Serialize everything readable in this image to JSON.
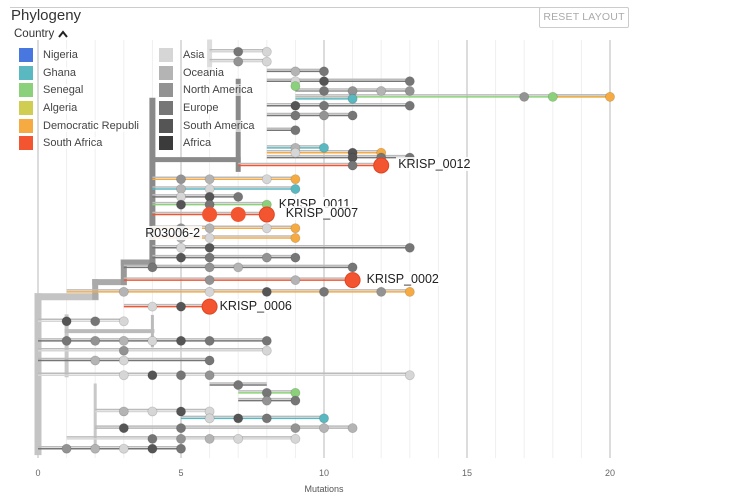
{
  "panel": {
    "title": "Phylogeny",
    "reset_button": "RESET LAYOUT"
  },
  "legend": {
    "title": "Country",
    "toggle_icon": "chevron-up-icon",
    "columns": [
      [
        {
          "label": "Nigeria",
          "color": "#4877e0"
        },
        {
          "label": "Ghana",
          "color": "#5ab8c0"
        },
        {
          "label": "Senegal",
          "color": "#8bd07a"
        },
        {
          "label": "Algeria",
          "color": "#cfcd52"
        },
        {
          "label": "Democratic Republi",
          "color": "#f5aa42"
        },
        {
          "label": "South Africa",
          "color": "#f25530"
        }
      ],
      [
        {
          "label": "Asia",
          "color": "#d6d6d6"
        },
        {
          "label": "Oceania",
          "color": "#b4b4b4"
        },
        {
          "label": "North America",
          "color": "#939393"
        },
        {
          "label": "Europe",
          "color": "#767676"
        },
        {
          "label": "South America",
          "color": "#555555"
        },
        {
          "label": "Africa",
          "color": "#3b3b3b"
        }
      ]
    ]
  },
  "chart_data": {
    "type": "tree",
    "title": "Phylogeny",
    "xlabel": "Mutations",
    "xlim": [
      0,
      20
    ],
    "xticks": [
      "0",
      "5",
      "10",
      "15",
      "20"
    ],
    "grid": true,
    "legend_position": "top-left",
    "highlighted_tips": [
      {
        "label": "KRISP_0012",
        "mutations": 12,
        "country": "South Africa"
      },
      {
        "label": "KRISP_0011",
        "mutations": 8,
        "country": "Africa"
      },
      {
        "label": "KRISP_0007",
        "mutations": 8,
        "country": "South Africa"
      },
      {
        "label": "R03006-2",
        "mutations": 7,
        "country": "South Africa"
      },
      {
        "label": "KRISP_0002",
        "mutations": 11,
        "country": "South Africa"
      },
      {
        "label": "KRISP_0006",
        "mutations": 6,
        "country": "South Africa"
      }
    ],
    "branches": [
      {
        "row": 1,
        "from": 6,
        "to": 8,
        "color": "#d6d6d6",
        "nodes": [
          7,
          8
        ]
      },
      {
        "row": 2,
        "from": 6,
        "to": 8,
        "color": "#d6d6d6",
        "nodes": [
          7,
          8
        ]
      },
      {
        "row": 3,
        "from": 8,
        "to": 10,
        "color": "#767676",
        "nodes": [
          9,
          10
        ]
      },
      {
        "row": 4,
        "from": 8,
        "to": 13,
        "color": "#767676",
        "nodes": [
          9,
          10,
          13
        ]
      },
      {
        "row": 4.5,
        "from": 9,
        "to": 9,
        "color": "#8bd07a",
        "nodes": [
          9
        ]
      },
      {
        "row": 5,
        "from": 9,
        "to": 13,
        "color": "#939393",
        "nodes": [
          10,
          11,
          12,
          13
        ]
      },
      {
        "row": 5.6,
        "from": 9,
        "to": 20,
        "color": "#8bd07a",
        "nodes": [
          17,
          18
        ]
      },
      {
        "row": 5.6,
        "from": 18,
        "to": 20,
        "color": "#f5aa42",
        "nodes": [
          20
        ]
      },
      {
        "row": 5.8,
        "from": 9,
        "to": 11,
        "color": "#5ab8c0",
        "nodes": [
          11
        ]
      },
      {
        "row": 6.5,
        "from": 8,
        "to": 13,
        "color": "#767676",
        "nodes": [
          9,
          10,
          13
        ]
      },
      {
        "row": 7.5,
        "from": 8,
        "to": 11,
        "color": "#767676",
        "nodes": [
          9,
          10,
          11
        ]
      },
      {
        "row": 9,
        "from": 8,
        "to": 9,
        "color": "#767676",
        "nodes": [
          9
        ]
      },
      {
        "row": 10.8,
        "from": 8,
        "to": 10,
        "color": "#5ab8c0",
        "nodes": [
          9,
          10
        ]
      },
      {
        "row": 11.3,
        "from": 8,
        "to": 12,
        "color": "#f5aa42",
        "nodes": [
          9,
          11,
          12
        ]
      },
      {
        "row": 11.8,
        "from": 8,
        "to": 13,
        "color": "#767676",
        "nodes": [
          11,
          12,
          13
        ]
      },
      {
        "row": 12.6,
        "from": 7,
        "to": 12,
        "color": "#f25530",
        "nodes": [
          11,
          12
        ]
      },
      {
        "row": 14,
        "from": 4,
        "to": 9,
        "color": "#f5aa42",
        "nodes": [
          5,
          6,
          8,
          9
        ]
      },
      {
        "row": 15,
        "from": 4,
        "to": 9,
        "color": "#5ab8c0",
        "nodes": [
          5,
          6,
          9
        ]
      },
      {
        "row": 15.8,
        "from": 4,
        "to": 7,
        "color": "#767676",
        "nodes": [
          5,
          6,
          7
        ]
      },
      {
        "row": 16.6,
        "from": 4,
        "to": 8,
        "color": "#8bd07a",
        "nodes": [
          5,
          6,
          8
        ]
      },
      {
        "row": 17.6,
        "from": 4,
        "to": 8,
        "color": "#f25530",
        "nodes": [
          6,
          7,
          8
        ]
      },
      {
        "row": 19,
        "from": 4,
        "to": 9,
        "color": "#f5aa42",
        "nodes": [
          5,
          6,
          8,
          9
        ]
      },
      {
        "row": 20,
        "from": 4,
        "to": 9,
        "color": "#f5aa42",
        "nodes": [
          5,
          6,
          9
        ]
      },
      {
        "row": 21,
        "from": 4,
        "to": 13,
        "color": "#767676",
        "nodes": [
          5,
          6,
          13
        ]
      },
      {
        "row": 22,
        "from": 4,
        "to": 9,
        "color": "#767676",
        "nodes": [
          5,
          6,
          8,
          9
        ]
      },
      {
        "row": 23,
        "from": 3,
        "to": 11,
        "color": "#767676",
        "nodes": [
          4,
          6,
          7,
          11
        ]
      },
      {
        "row": 24.3,
        "from": 3,
        "to": 11,
        "color": "#f25530",
        "nodes": [
          6,
          9,
          11
        ]
      },
      {
        "row": 25.5,
        "from": 1,
        "to": 13,
        "color": "#f5aa42",
        "nodes": [
          3,
          6,
          8,
          10,
          12,
          13
        ]
      },
      {
        "row": 27,
        "from": 3,
        "to": 6,
        "color": "#f25530",
        "nodes": [
          4,
          5,
          6
        ]
      },
      {
        "row": 28.5,
        "from": 0,
        "to": 3,
        "color": "#d6d6d6",
        "nodes": [
          1,
          2,
          3
        ]
      },
      {
        "row": 30.5,
        "from": 0,
        "to": 8,
        "color": "#767676",
        "nodes": [
          1,
          2,
          3,
          4,
          5,
          6,
          8
        ]
      },
      {
        "row": 31.5,
        "from": 0,
        "to": 8,
        "color": "#d6d6d6",
        "nodes": [
          3,
          8
        ]
      },
      {
        "row": 32.5,
        "from": 0,
        "to": 6,
        "color": "#767676",
        "nodes": [
          2,
          3,
          6
        ]
      },
      {
        "row": 34,
        "from": 0,
        "to": 13,
        "color": "#d6d6d6",
        "nodes": [
          3,
          4,
          5,
          6,
          13
        ]
      },
      {
        "row": 35,
        "from": 6,
        "to": 8,
        "color": "#767676",
        "nodes": [
          7
        ]
      },
      {
        "row": 35.8,
        "from": 7,
        "to": 9,
        "color": "#8bd07a",
        "nodes": [
          8,
          9
        ]
      },
      {
        "row": 36.6,
        "from": 7,
        "to": 9,
        "color": "#767676",
        "nodes": [
          8,
          9
        ]
      },
      {
        "row": 37.7,
        "from": 2,
        "to": 6,
        "color": "#d6d6d6",
        "nodes": [
          3,
          4,
          5,
          6
        ]
      },
      {
        "row": 38.4,
        "from": 5,
        "to": 10,
        "color": "#5ab8c0",
        "nodes": [
          6,
          7,
          8,
          10
        ]
      },
      {
        "row": 39.4,
        "from": 2,
        "to": 11,
        "color": "#b4b4b4",
        "nodes": [
          3,
          5,
          9,
          10,
          11
        ]
      },
      {
        "row": 40.5,
        "from": 1,
        "to": 9,
        "color": "#d6d6d6",
        "nodes": [
          4,
          5,
          6,
          7,
          9
        ]
      },
      {
        "row": 41.5,
        "from": 0,
        "to": 5,
        "color": "#767676",
        "nodes": [
          1,
          2,
          3,
          4,
          5
        ]
      }
    ]
  }
}
